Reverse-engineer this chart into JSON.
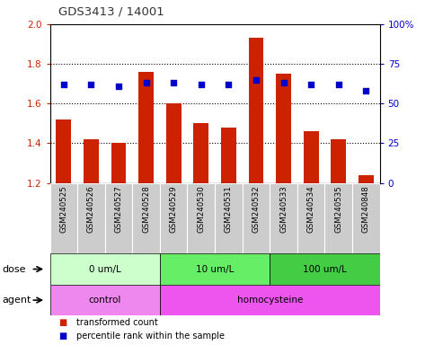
{
  "title": "GDS3413 / 14001",
  "samples": [
    "GSM240525",
    "GSM240526",
    "GSM240527",
    "GSM240528",
    "GSM240529",
    "GSM240530",
    "GSM240531",
    "GSM240532",
    "GSM240533",
    "GSM240534",
    "GSM240535",
    "GSM240848"
  ],
  "transformed_count": [
    1.52,
    1.42,
    1.4,
    1.76,
    1.6,
    1.5,
    1.48,
    1.93,
    1.75,
    1.46,
    1.42,
    1.24
  ],
  "percentile_rank": [
    62,
    62,
    61,
    63,
    63,
    62,
    62,
    65,
    63,
    62,
    62,
    58
  ],
  "bar_bottom": 1.2,
  "ylim_left": [
    1.2,
    2.0
  ],
  "ylim_right": [
    0,
    100
  ],
  "yticks_left": [
    1.2,
    1.4,
    1.6,
    1.8,
    2.0
  ],
  "yticks_right": [
    0,
    25,
    50,
    75,
    100
  ],
  "ytick_labels_right": [
    "0",
    "25",
    "50",
    "75",
    "100%"
  ],
  "bar_color": "#cc2200",
  "dot_color": "#0000cc",
  "dose_groups": [
    {
      "label": "0 um/L",
      "start": 0,
      "end": 4,
      "color": "#ccffcc"
    },
    {
      "label": "10 um/L",
      "start": 4,
      "end": 8,
      "color": "#66ee66"
    },
    {
      "label": "100 um/L",
      "start": 8,
      "end": 12,
      "color": "#44cc44"
    }
  ],
  "agent_control_color": "#ee88ee",
  "agent_homo_color": "#ee55ee",
  "dose_label": "dose",
  "agent_label": "agent",
  "legend_bar_label": "transformed count",
  "legend_dot_label": "percentile rank within the sample",
  "xlabel_area_color": "#cccccc",
  "title_color": "#333333",
  "left_axis_color": "#cc2200",
  "right_axis_color": "#0000cc",
  "fig_width": 4.83,
  "fig_height": 3.84,
  "dpi": 100
}
